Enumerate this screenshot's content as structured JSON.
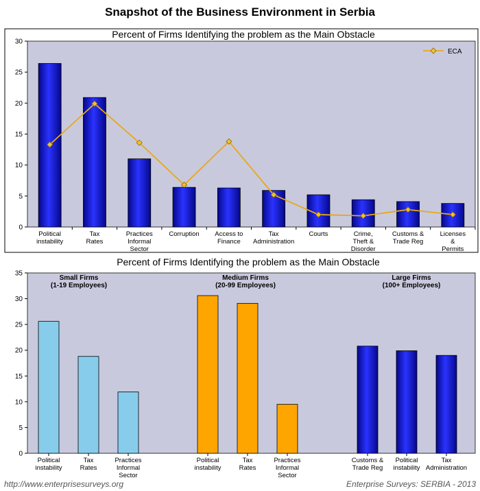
{
  "page": {
    "title": "Snapshot of the Business Environment in Serbia",
    "footer_left": "http://www.enterprisesurveys.org",
    "footer_right": "Enterprise Surveys: SERBIA - 2013"
  },
  "colors": {
    "plot_bg": "#c9c9de",
    "bar_blue": "#0a12d8",
    "bar_light_blue": "#87cdeb",
    "bar_orange": "#ffa500",
    "eca_line": "#e8a817",
    "eca_marker": "#f2c22c"
  },
  "chart_data": [
    {
      "type": "bar",
      "title": "Percent of Firms Identifying the problem as the Main Obstacle",
      "categories": [
        [
          "Political",
          "instability"
        ],
        [
          "Tax",
          "Rates"
        ],
        [
          "Practices",
          "Informal",
          "Sector"
        ],
        [
          "Corruption"
        ],
        [
          "Access to",
          "Finance"
        ],
        [
          "Tax",
          "Administration"
        ],
        [
          "Courts"
        ],
        [
          "Crime,",
          "Theft &",
          "Disorder"
        ],
        [
          "Customs &",
          "Trade Reg"
        ],
        [
          "Licenses",
          "&",
          "Permits"
        ]
      ],
      "series": [
        {
          "values": [
            26.4,
            20.9,
            11.0,
            6.4,
            6.3,
            5.9,
            5.2,
            4.4,
            4.1,
            3.8
          ]
        },
        {
          "name": "ECA",
          "type": "line",
          "values": [
            13.3,
            19.9,
            13.6,
            6.8,
            13.8,
            5.2,
            2.0,
            1.8,
            2.8,
            2.0
          ]
        }
      ],
      "ylim": [
        0,
        30
      ],
      "yticks": [
        0,
        5,
        10,
        15,
        20,
        25,
        30
      ],
      "legend": {
        "label": "ECA",
        "position": "top-right"
      },
      "grid": false
    },
    {
      "type": "bar",
      "title": "Percent of Firms Identifying the problem as the Main Obstacle",
      "ylim": [
        0,
        35
      ],
      "yticks": [
        0,
        5,
        10,
        15,
        20,
        25,
        30,
        35
      ],
      "grid": false,
      "groups": [
        {
          "name": [
            "Small Firms",
            "(1-19 Employees)"
          ],
          "color": "#87cdeb",
          "categories": [
            [
              "Political",
              "instability"
            ],
            [
              "Tax",
              "Rates"
            ],
            [
              "Practices",
              "Informal",
              "Sector"
            ]
          ],
          "values": [
            25.6,
            18.8,
            11.9
          ]
        },
        {
          "name": [
            "Medium Firms",
            "(20-99 Employees)"
          ],
          "color": "#ffa500",
          "categories": [
            [
              "Political",
              "instability"
            ],
            [
              "Tax",
              "Rates"
            ],
            [
              "Practices",
              "Informal",
              "Sector"
            ]
          ],
          "values": [
            30.6,
            29.1,
            9.5
          ]
        },
        {
          "name": [
            "Large Firms",
            "(100+ Employees)"
          ],
          "color": "#0a12d8",
          "categories": [
            [
              "Customs &",
              "Trade Reg"
            ],
            [
              "Political",
              "instability"
            ],
            [
              "Tax",
              "Administration"
            ]
          ],
          "values": [
            20.8,
            19.9,
            19.0
          ]
        }
      ]
    }
  ]
}
